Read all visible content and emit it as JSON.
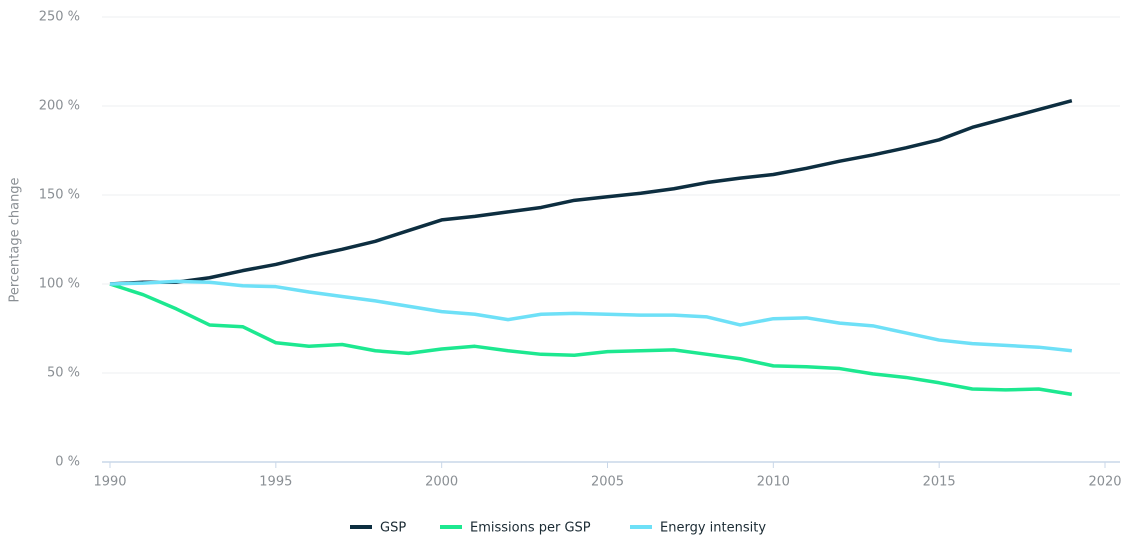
{
  "chart_data": {
    "type": "line",
    "ylabel": "Percentage change",
    "x": [
      1990,
      1991,
      1992,
      1993,
      1994,
      1995,
      1996,
      1997,
      1998,
      1999,
      2000,
      2001,
      2002,
      2003,
      2004,
      2005,
      2006,
      2007,
      2008,
      2009,
      2010,
      2011,
      2012,
      2013,
      2014,
      2015,
      2016,
      2017,
      2018,
      2019
    ],
    "series": [
      {
        "name": "GSP",
        "color": "#0d2e40",
        "values": [
          100,
          101,
          101,
          103.5,
          107.5,
          111,
          115.5,
          119.5,
          124,
          130,
          136,
          138,
          140.5,
          143,
          147,
          149,
          151,
          153.5,
          157,
          159.5,
          161.5,
          165,
          169,
          172.5,
          176.5,
          181,
          188,
          193,
          198,
          203
        ]
      },
      {
        "name": "Emissions per GSP",
        "color": "#1de890",
        "values": [
          100,
          94,
          86,
          77,
          76,
          67,
          65,
          66,
          62.5,
          61,
          63.5,
          65,
          62.5,
          60.5,
          60,
          62,
          62.5,
          63,
          60.5,
          58,
          54,
          53.5,
          52.5,
          49.5,
          47.5,
          44.5,
          41,
          40.5,
          41,
          38
        ]
      },
      {
        "name": "Energy intensity",
        "color": "#6ee0f7",
        "values": [
          100,
          100.5,
          101.5,
          101,
          99,
          98.5,
          95.5,
          93,
          90.5,
          87.5,
          84.5,
          83,
          80,
          83,
          83.5,
          83,
          82.5,
          82.5,
          81.5,
          77,
          80.5,
          81,
          78,
          76.5,
          72.5,
          68.5,
          66.5,
          65.5,
          64.5,
          62.5
        ]
      }
    ],
    "xlim": [
      1990,
      2020
    ],
    "xticks": [
      1990,
      1995,
      2000,
      2005,
      2010,
      2015,
      2020
    ],
    "ylim": [
      0,
      250
    ],
    "yticks": [
      {
        "value": 0,
        "label": "0 %"
      },
      {
        "value": 50,
        "label": "50 %"
      },
      {
        "value": 100,
        "label": "100 %"
      },
      {
        "value": 150,
        "label": "150 %"
      },
      {
        "value": 200,
        "label": "200 %"
      },
      {
        "value": 250,
        "label": "250 %"
      }
    ],
    "grid": true,
    "legend": "bottom"
  }
}
